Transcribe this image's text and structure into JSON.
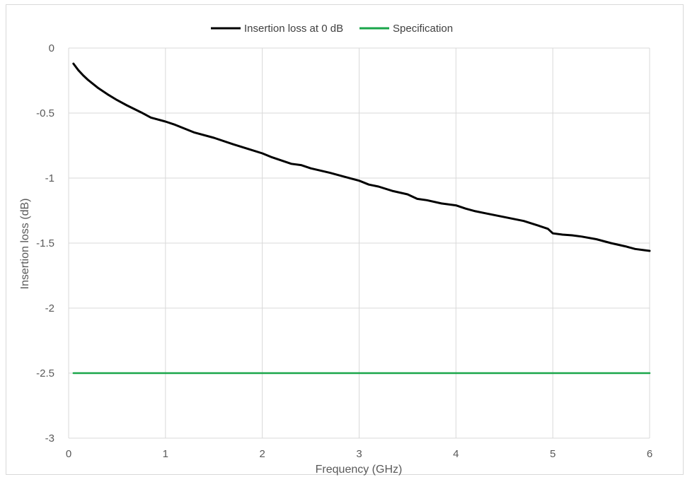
{
  "chart_data": {
    "type": "line",
    "title": "",
    "xlabel": "Frequency (GHz)",
    "ylabel": "Insertion loss (dB)",
    "xlim": [
      0,
      6
    ],
    "ylim": [
      -3,
      0
    ],
    "xticks": [
      0,
      1,
      2,
      3,
      4,
      5,
      6
    ],
    "yticks": [
      0,
      -0.5,
      -1,
      -1.5,
      -2,
      -2.5,
      -3
    ],
    "grid": true,
    "legend_position": "top",
    "series": [
      {
        "name": "Insertion loss at 0 dB",
        "color": "#000000",
        "x": [
          0.05,
          0.1,
          0.15,
          0.2,
          0.3,
          0.4,
          0.5,
          0.6,
          0.75,
          0.85,
          1.0,
          1.1,
          1.2,
          1.3,
          1.5,
          1.7,
          1.85,
          2.0,
          2.1,
          2.3,
          2.4,
          2.5,
          2.7,
          2.85,
          3.0,
          3.1,
          3.2,
          3.35,
          3.5,
          3.6,
          3.7,
          3.85,
          4.0,
          4.1,
          4.2,
          4.3,
          4.5,
          4.7,
          4.85,
          4.95,
          5.0,
          5.1,
          5.2,
          5.3,
          5.45,
          5.6,
          5.75,
          5.85,
          5.95,
          6.0
        ],
        "y": [
          -0.12,
          -0.17,
          -0.21,
          -0.245,
          -0.305,
          -0.355,
          -0.4,
          -0.44,
          -0.495,
          -0.535,
          -0.565,
          -0.59,
          -0.62,
          -0.65,
          -0.69,
          -0.74,
          -0.775,
          -0.81,
          -0.84,
          -0.89,
          -0.9,
          -0.925,
          -0.96,
          -0.99,
          -1.02,
          -1.05,
          -1.065,
          -1.1,
          -1.125,
          -1.16,
          -1.17,
          -1.195,
          -1.21,
          -1.235,
          -1.255,
          -1.27,
          -1.3,
          -1.33,
          -1.365,
          -1.39,
          -1.425,
          -1.435,
          -1.44,
          -1.45,
          -1.47,
          -1.5,
          -1.525,
          -1.545,
          -1.555,
          -1.56
        ]
      },
      {
        "name": "Specification",
        "color": "#1aa64a",
        "x": [
          0.05,
          6.0
        ],
        "y": [
          -2.5,
          -2.5
        ]
      }
    ]
  }
}
